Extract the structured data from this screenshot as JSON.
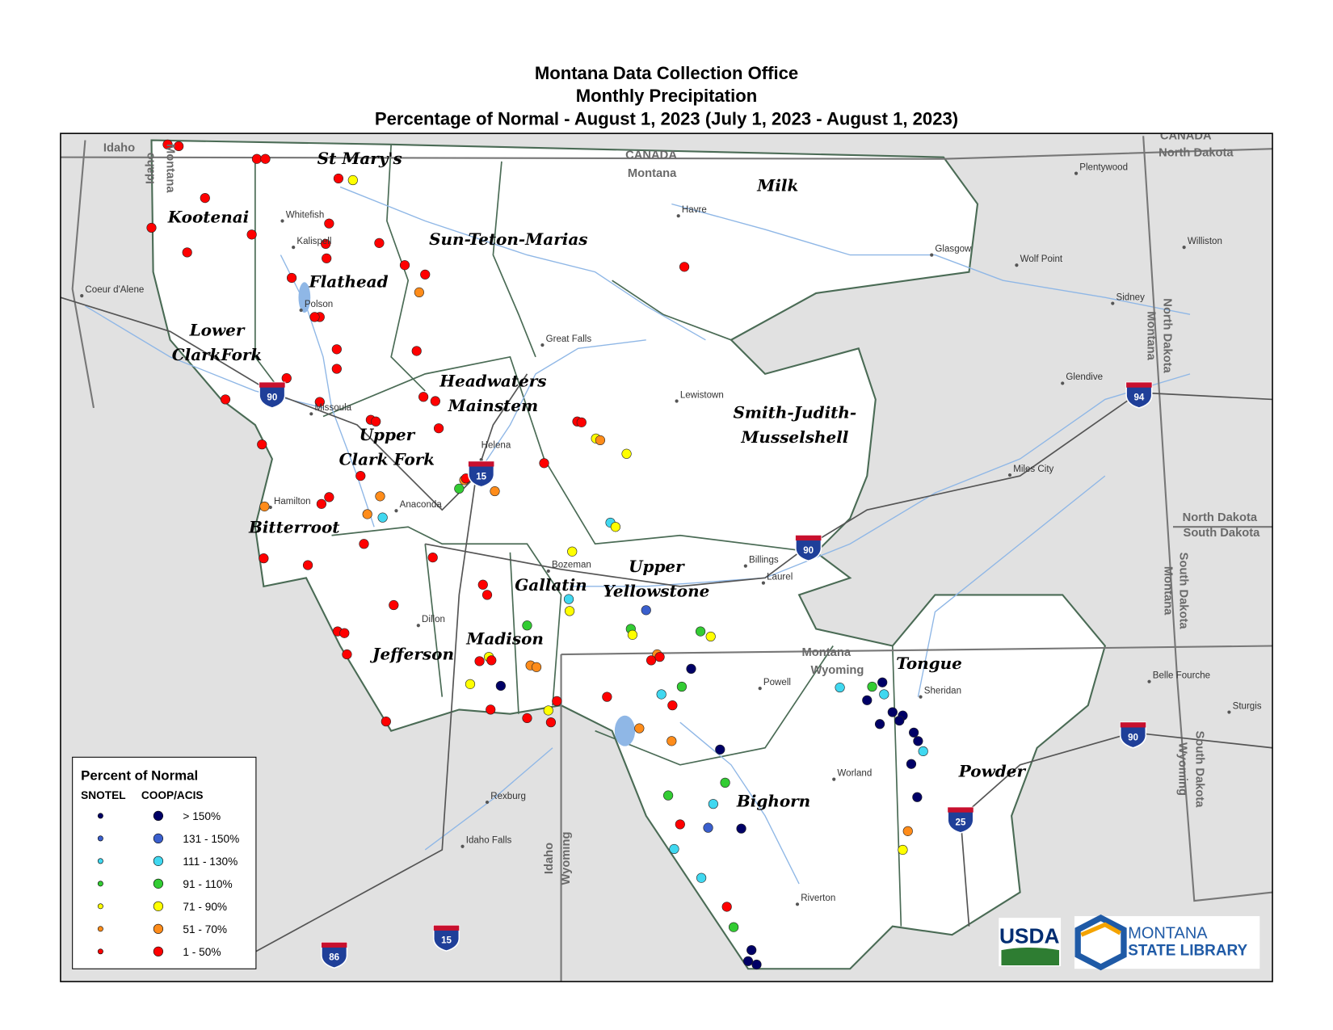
{
  "title": [
    "Montana Data Collection Office",
    "Monthly Precipitation",
    "Percentage of Normal - August 1, 2023 (July 1, 2023 - August 1, 2023)"
  ],
  "basins": [
    [
      "Kootenai"
    ],
    [
      "St Mary's"
    ],
    [
      "Milk"
    ],
    [
      "Sun-Teton-Marias"
    ],
    [
      "Flathead"
    ],
    [
      "Lower",
      "ClarkFork"
    ],
    [
      "Headwaters",
      "Mainstem"
    ],
    [
      "Smith-Judith-",
      "Musselshell"
    ],
    [
      "Upper",
      "Clark Fork"
    ],
    [
      "Bitterroot"
    ],
    [
      "Upper",
      "Yellowstone"
    ],
    [
      "Gallatin"
    ],
    [
      "Madison"
    ],
    [
      "Jefferson"
    ],
    [
      "Tongue"
    ],
    [
      "Powder"
    ],
    [
      "Bighorn"
    ]
  ],
  "cities": [
    "Whitefish",
    "Kalispell",
    "Polson",
    "Coeur d'Alene",
    "Missoula",
    "Hamilton",
    "Anaconda",
    "Helena",
    "Great Falls",
    "Lewistown",
    "Havre",
    "Glasgow",
    "Plentywood",
    "Wolf Point",
    "Williston",
    "Sidney",
    "Glendive",
    "Miles City",
    "Billings",
    "Laurel",
    "Bozeman",
    "Dillon",
    "Powell",
    "Sheridan",
    "Worland",
    "Riverton",
    "Rexburg",
    "Idaho Falls",
    "Belle Fourche",
    "Sturgis"
  ],
  "states": [
    "Idaho",
    "CANADA",
    "Montana",
    "CANADA",
    "North Dakota",
    "North Dakota",
    "South Dakota",
    "Montana",
    "Wyoming",
    "Idaho",
    "Montana",
    "North Dakota",
    "Montana",
    "South Dakota",
    "Montana",
    "South Dakota",
    "Wyoming",
    "Idaho",
    "Wyoming"
  ],
  "interstates": [
    "90",
    "90",
    "90",
    "94",
    "15",
    "15",
    "25",
    "86"
  ],
  "legend": {
    "title": "Percent of Normal",
    "columns": [
      "SNOTEL",
      "COOP/ACIS"
    ],
    "classes": [
      {
        "label": "> 150%",
        "color": "#000066"
      },
      {
        "label": "131 - 150%",
        "color": "#3a5fcd"
      },
      {
        "label": "111 - 130%",
        "color": "#40d8f0"
      },
      {
        "label": "91 - 110%",
        "color": "#33cc33"
      },
      {
        "label": "71 - 90%",
        "color": "#ffff00"
      },
      {
        "label": "51 - 70%",
        "color": "#ff8c1a"
      },
      {
        "label": "1 - 50%",
        "color": "#ff0000"
      }
    ]
  },
  "logos": {
    "usda": "USDA",
    "msl": [
      "MONTANA",
      "STATE LIBRARY"
    ]
  }
}
